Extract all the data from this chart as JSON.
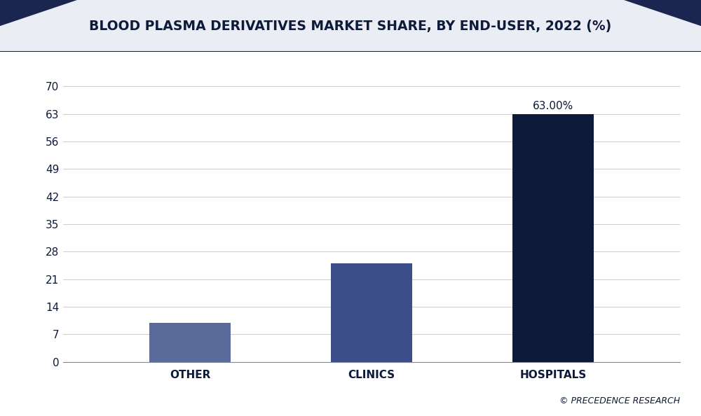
{
  "title": "BLOOD PLASMA DERIVATIVES MARKET SHARE, BY END-USER, 2022 (%)",
  "categories": [
    "OTHER",
    "CLINICS",
    "HOSPITALS"
  ],
  "values": [
    10.0,
    25.0,
    63.0
  ],
  "bar_colors": [
    "#5a6a9a",
    "#3d4f8a",
    "#0d1a3a"
  ],
  "bar_annotation": [
    null,
    null,
    "63.00%"
  ],
  "yticks": [
    0,
    7,
    14,
    21,
    28,
    35,
    42,
    49,
    56,
    63,
    70
  ],
  "ylim": [
    0,
    74
  ],
  "background_color": "#ffffff",
  "plot_bg_color": "#ffffff",
  "grid_color": "#d0d0d0",
  "title_color": "#0d1a3a",
  "tick_color": "#0d1a3a",
  "watermark": "© PRECEDENCE RESEARCH",
  "title_fontsize": 13.5,
  "tick_label_fontsize": 11,
  "bar_width": 0.45,
  "header_bg_color": "#eaedf4",
  "header_dark_color": "#1a2650",
  "border_color": "#1a2650"
}
